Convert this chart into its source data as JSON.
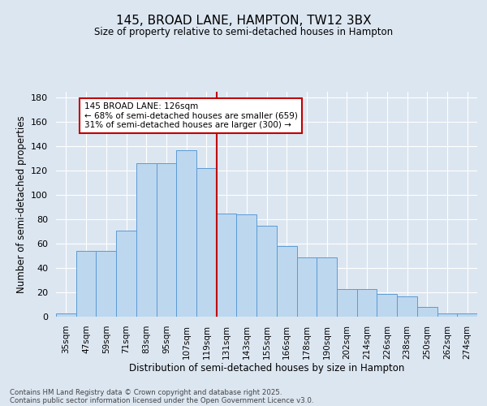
{
  "title1": "145, BROAD LANE, HAMPTON, TW12 3BX",
  "title2": "Size of property relative to semi-detached houses in Hampton",
  "xlabel": "Distribution of semi-detached houses by size in Hampton",
  "ylabel": "Number of semi-detached properties",
  "categories": [
    "35sqm",
    "47sqm",
    "59sqm",
    "71sqm",
    "83sqm",
    "95sqm",
    "107sqm",
    "119sqm",
    "131sqm",
    "143sqm",
    "155sqm",
    "166sqm",
    "178sqm",
    "190sqm",
    "202sqm",
    "214sqm",
    "226sqm",
    "238sqm",
    "250sqm",
    "262sqm",
    "274sqm"
  ],
  "values": [
    3,
    54,
    54,
    71,
    126,
    126,
    137,
    122,
    85,
    84,
    75,
    58,
    49,
    49,
    23,
    23,
    19,
    17,
    8,
    3,
    3
  ],
  "bar_color": "#bdd7ee",
  "bar_edge_color": "#5b9bd5",
  "vline_color": "#c00000",
  "annotation_line1": "145 BROAD LANE: 126sqm",
  "annotation_line2": "← 68% of semi-detached houses are smaller (659)",
  "annotation_line3": "31% of semi-detached houses are larger (300) →",
  "annotation_box_color": "#ffffff",
  "annotation_box_edge": "#c00000",
  "ylim": [
    0,
    185
  ],
  "yticks": [
    0,
    20,
    40,
    60,
    80,
    100,
    120,
    140,
    160,
    180
  ],
  "background_color": "#dce6f1",
  "grid_color": "#ffffff",
  "footer1": "Contains HM Land Registry data © Crown copyright and database right 2025.",
  "footer2": "Contains public sector information licensed under the Open Government Licence v3.0."
}
